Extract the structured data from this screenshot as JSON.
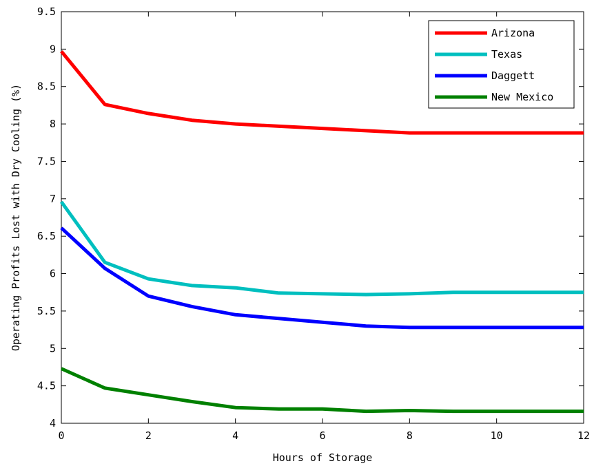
{
  "chart_data": {
    "type": "line",
    "xlabel": "Hours of Storage",
    "ylabel": "Operating Profits Lost with Dry Cooling (%)",
    "xlim": [
      0,
      12
    ],
    "ylim": [
      4,
      9.5
    ],
    "xticks": [
      "0",
      "2",
      "4",
      "6",
      "8",
      "10",
      "12"
    ],
    "yticks": [
      "4",
      "4.5",
      "5",
      "5.5",
      "6",
      "6.5",
      "7",
      "7.5",
      "8",
      "8.5",
      "9",
      "9.5"
    ],
    "grid": false,
    "legend_position": "top-right",
    "x": [
      0,
      1,
      2,
      3,
      4,
      5,
      6,
      7,
      8,
      9,
      10,
      11,
      12
    ],
    "series": [
      {
        "name": "Arizona",
        "color": "#ff0000",
        "values": [
          8.97,
          8.26,
          8.14,
          8.05,
          8.0,
          7.97,
          7.94,
          7.91,
          7.88,
          7.88,
          7.88,
          7.88,
          7.88
        ]
      },
      {
        "name": "Texas",
        "color": "#00bfbf",
        "values": [
          6.96,
          6.15,
          5.93,
          5.84,
          5.81,
          5.74,
          5.73,
          5.72,
          5.73,
          5.75,
          5.75,
          5.75,
          5.75
        ]
      },
      {
        "name": "Daggett",
        "color": "#0000ff",
        "values": [
          6.61,
          6.07,
          5.7,
          5.56,
          5.45,
          5.4,
          5.35,
          5.3,
          5.28,
          5.28,
          5.28,
          5.28,
          5.28
        ]
      },
      {
        "name": "New Mexico",
        "color": "#008000",
        "values": [
          4.73,
          4.47,
          4.38,
          4.29,
          4.21,
          4.19,
          4.19,
          4.16,
          4.17,
          4.16,
          4.16,
          4.16,
          4.16
        ]
      }
    ]
  }
}
